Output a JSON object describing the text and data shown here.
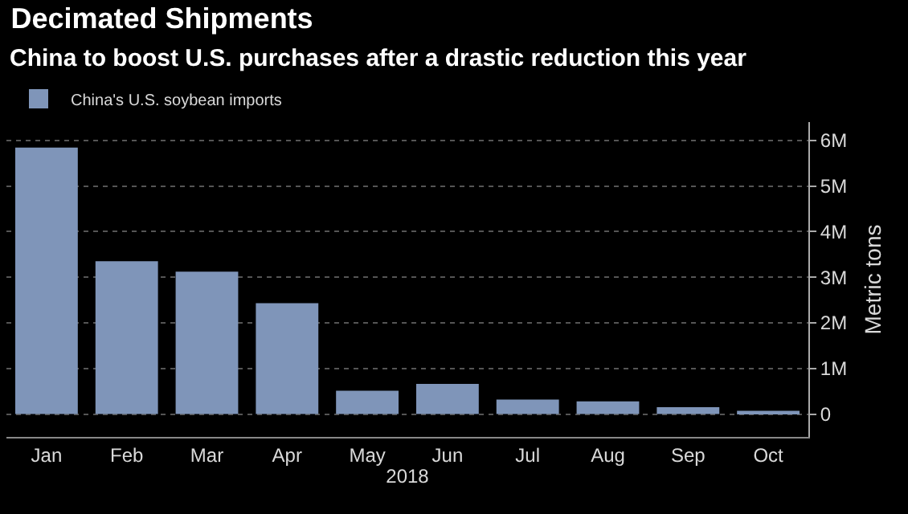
{
  "chart_data": {
    "type": "bar",
    "title": "Decimated Shipments",
    "subtitle": "China to boost U.S. purchases after a drastic reduction this year",
    "xlabel": "2018",
    "ylabel": "Metric tons",
    "categories": [
      "Jan",
      "Feb",
      "Mar",
      "Apr",
      "May",
      "Jun",
      "Jul",
      "Aug",
      "Sep",
      "Oct"
    ],
    "series": [
      {
        "name": "China's U.S. soybean imports",
        "color": "#7f95b9",
        "values": [
          5840000,
          3350000,
          3120000,
          2430000,
          510000,
          660000,
          320000,
          280000,
          150000,
          70000
        ]
      }
    ],
    "ylim": [
      -500000,
      6400000
    ],
    "yticks": [
      0,
      {
        "value": 1000000,
        "label": "1M"
      },
      {
        "value": 2000000,
        "label": "2M"
      },
      {
        "value": 3000000,
        "label": "3M"
      },
      {
        "value": 4000000,
        "label": "4M"
      },
      {
        "value": 5000000,
        "label": "5M"
      },
      {
        "value": 6000000,
        "label": "6M"
      }
    ],
    "grid": "y",
    "legend": "top left"
  }
}
